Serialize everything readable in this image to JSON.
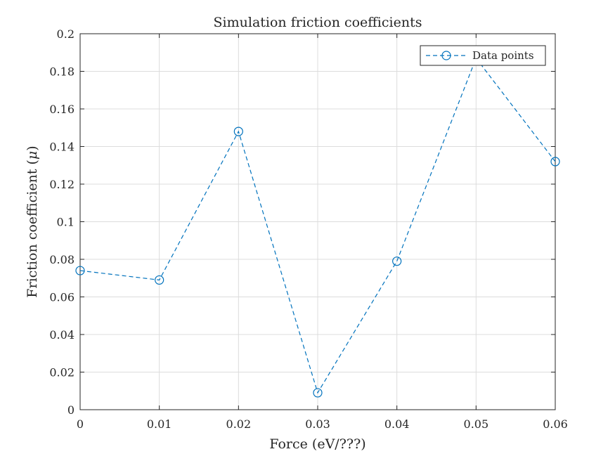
{
  "chart_data": {
    "type": "line",
    "title": "Simulation friction coefficients",
    "xlabel": "Force (eV/???)",
    "ylabel_text": "Friction coefficient (",
    "ylabel_symbol": "μ",
    "ylabel_close": ")",
    "xlim": [
      0,
      0.06
    ],
    "ylim": [
      0,
      0.2
    ],
    "xticks": [
      0,
      0.01,
      0.02,
      0.03,
      0.04,
      0.05,
      0.06
    ],
    "xtick_labels": [
      "0",
      "0.01",
      "0.02",
      "0.03",
      "0.04",
      "0.05",
      "0.06"
    ],
    "yticks": [
      0,
      0.02,
      0.04,
      0.06,
      0.08,
      0.1,
      0.12,
      0.14,
      0.16,
      0.18,
      0.2
    ],
    "ytick_labels": [
      "0",
      "0.02",
      "0.04",
      "0.06",
      "0.08",
      "0.1",
      "0.12",
      "0.14",
      "0.16",
      "0.18",
      "0.2"
    ],
    "grid": true,
    "legend_position": "top-right",
    "series": [
      {
        "name": "Data points",
        "color": "#0072bd",
        "line_style": "dashed",
        "marker": "circle",
        "x": [
          0,
          0.01,
          0.02,
          0.03,
          0.04,
          0.05,
          0.06
        ],
        "y": [
          0.074,
          0.069,
          0.148,
          0.009,
          0.079,
          0.187,
          0.132
        ]
      }
    ]
  }
}
